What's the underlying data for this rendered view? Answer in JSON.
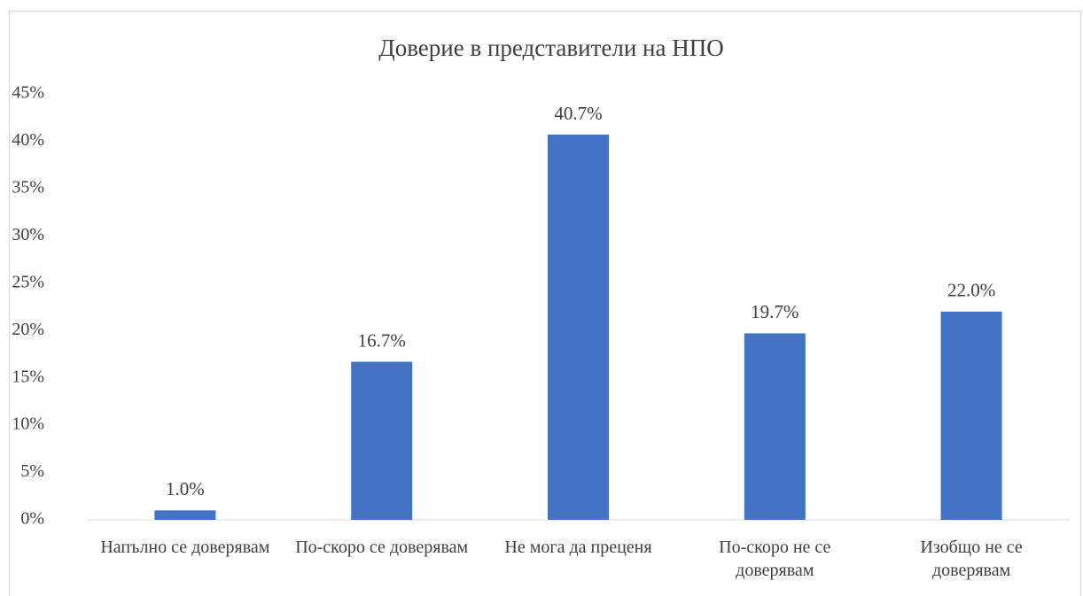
{
  "chart_data": {
    "type": "bar",
    "title": "Доверие в представители на НПО",
    "categories": [
      "Напълно се доверявам",
      "По-скоро се доверявам",
      "Не мога да преценя",
      "По-скоро не се доверявам",
      "Изобщо не се доверявам"
    ],
    "values": [
      1.0,
      16.7,
      40.7,
      19.7,
      22.0
    ],
    "value_labels": [
      "1.0%",
      "16.7%",
      "40.7%",
      "19.7%",
      "22.0%"
    ],
    "color": "#4472c4",
    "ylim": [
      0,
      45
    ],
    "yticks": [
      {
        "value": 0,
        "label": "0%"
      },
      {
        "value": 5,
        "label": "5%"
      },
      {
        "value": 10,
        "label": "10%"
      },
      {
        "value": 15,
        "label": "15%"
      },
      {
        "value": 20,
        "label": "20%"
      },
      {
        "value": 25,
        "label": "25%"
      },
      {
        "value": 30,
        "label": "30%"
      },
      {
        "value": 35,
        "label": "35%"
      },
      {
        "value": 40,
        "label": "40%"
      },
      {
        "value": 45,
        "label": "45%"
      }
    ],
    "grid": false
  }
}
